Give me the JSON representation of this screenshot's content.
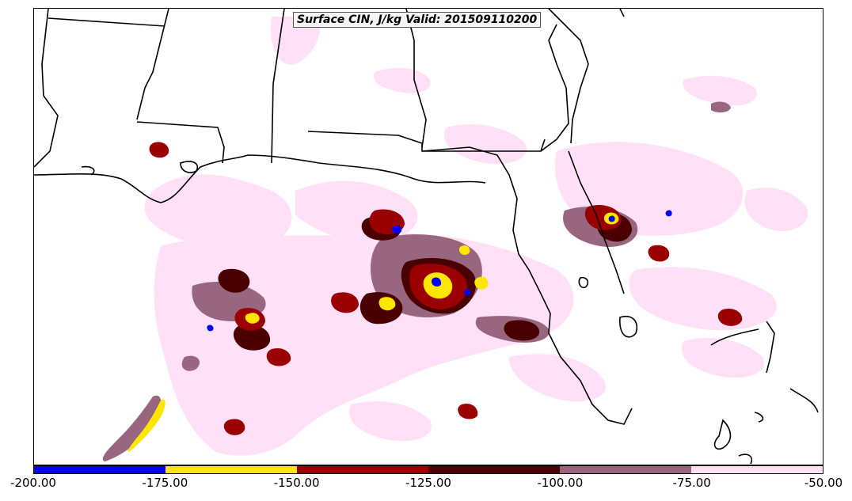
{
  "map": {
    "title": "Surface CIN, J/kg Valid: 201509110200",
    "region": "Gulf of Mexico and southeastern United States",
    "colors": {
      "land": "#ffffff",
      "boundary": "#000000"
    }
  },
  "colorbar": {
    "ticks": [
      "-200.00",
      "-175.00",
      "-150.00",
      "-125.00",
      "-100.00",
      "-75.00",
      "-50.00"
    ],
    "bins": [
      {
        "from": -200,
        "to": -175,
        "color": "#0000ff"
      },
      {
        "from": -175,
        "to": -150,
        "color": "#ffe600"
      },
      {
        "from": -150,
        "to": -125,
        "color": "#9b0000"
      },
      {
        "from": -125,
        "to": -100,
        "color": "#4a0000"
      },
      {
        "from": -100,
        "to": -75,
        "color": "#996680"
      },
      {
        "from": -75,
        "to": -50,
        "color": "#ffe0f6"
      }
    ]
  }
}
